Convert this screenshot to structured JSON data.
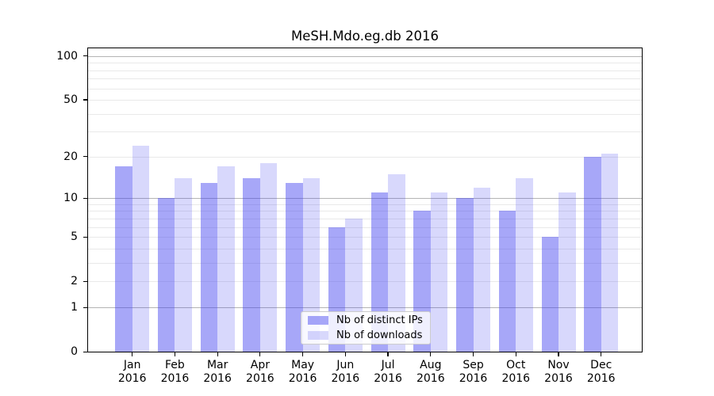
{
  "title": "MeSH.Mdo.eg.db 2016",
  "chart_data": {
    "type": "bar",
    "title": "MeSH.Mdo.eg.db 2016",
    "categories": [
      "Jan",
      "Feb",
      "Mar",
      "Apr",
      "May",
      "Jun",
      "Jul",
      "Aug",
      "Sep",
      "Oct",
      "Nov",
      "Dec"
    ],
    "year_label": "2016",
    "series": [
      {
        "name": "Nb of distinct IPs",
        "key": "distinct-ips",
        "color": "rgba(60,60,240,0.45)",
        "values": [
          17,
          10,
          13,
          14,
          13,
          6,
          11,
          8,
          10,
          8,
          5,
          20
        ]
      },
      {
        "name": "Nb of downloads",
        "key": "downloads",
        "color": "rgba(60,60,240,0.20)",
        "values": [
          24,
          14,
          17,
          18,
          14,
          7,
          15,
          11,
          12,
          14,
          11,
          21
        ]
      }
    ],
    "yscale": "log10(1+x)",
    "yticks": [
      0,
      1,
      2,
      5,
      10,
      20,
      50,
      100
    ],
    "ylim": [
      0,
      115
    ],
    "grid": true,
    "grid_major": [
      1,
      10,
      100
    ],
    "grid_minor": [
      2,
      3,
      4,
      5,
      6,
      7,
      8,
      9,
      20,
      30,
      40,
      50,
      60,
      70,
      80,
      90
    ],
    "xlabel": "",
    "ylabel": "",
    "legend_position": "bottom-center"
  },
  "colors": {
    "bar_distinct_ips": "rgba(60,60,240,0.45)",
    "bar_downloads": "rgba(60,60,240,0.20)",
    "grid_major": "#b4b4b4",
    "grid_minor": "#e9e9e9",
    "axis": "#000000",
    "legend_border": "#cccccc",
    "background": "#ffffff"
  }
}
